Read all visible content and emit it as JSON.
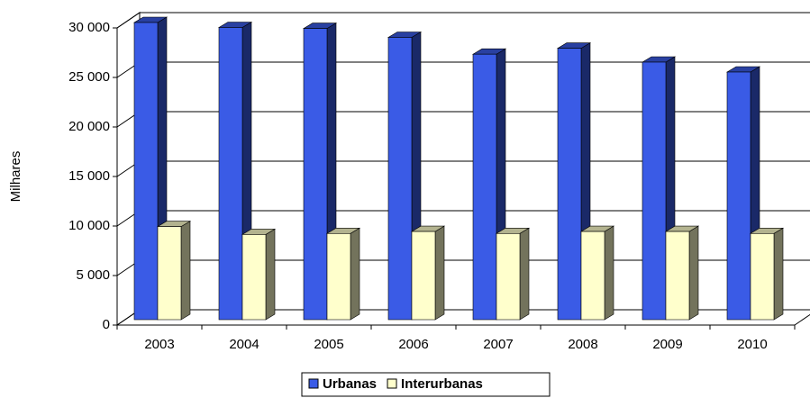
{
  "chart_data": {
    "type": "bar3d",
    "y_label": "Milhares",
    "categories": [
      "2003",
      "2004",
      "2005",
      "2006",
      "2007",
      "2008",
      "2009",
      "2010"
    ],
    "series": [
      {
        "name": "Urbanas",
        "color": "#3a5be6",
        "values": [
          30000,
          29500,
          29400,
          28500,
          26800,
          27400,
          26000,
          25000
        ]
      },
      {
        "name": "Interurbanas",
        "color": "#ffffcc",
        "values": [
          9400,
          8600,
          8700,
          8900,
          8700,
          8900,
          8900,
          8700
        ]
      }
    ],
    "ylim": [
      0,
      30000
    ],
    "yticks": [
      0,
      {
        "value": 5000,
        "label": "5 000"
      },
      {
        "value": 10000,
        "label": "10 000"
      },
      {
        "value": 15000,
        "label": "15 000"
      },
      {
        "value": 20000,
        "label": "20 000"
      },
      {
        "value": 25000,
        "label": "25 000"
      },
      {
        "value": 30000,
        "label": "30 000"
      }
    ],
    "grid": true
  }
}
